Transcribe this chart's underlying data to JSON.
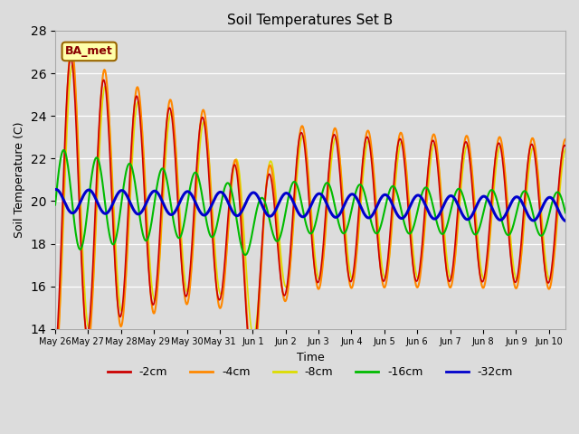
{
  "title": "Soil Temperatures Set B",
  "xlabel": "Time",
  "ylabel": "Soil Temperature (C)",
  "ylim": [
    14,
    28
  ],
  "yticks": [
    14,
    16,
    18,
    20,
    22,
    24,
    26,
    28
  ],
  "background_color": "#dcdcdc",
  "plot_bg_color": "#dcdcdc",
  "label_box_text": "BA_met",
  "label_box_bg": "#ffffaa",
  "label_box_edge": "#996600",
  "label_box_text_color": "#880000",
  "series_colors": {
    "-2cm": "#cc0000",
    "-4cm": "#ff8800",
    "-8cm": "#dddd00",
    "-16cm": "#00bb00",
    "-32cm": "#0000cc"
  },
  "date_labels": [
    "May 26",
    "May 27",
    "May 28",
    "May 29",
    "May 30",
    "May 31",
    "Jun 1",
    "Jun 2",
    "Jun 3",
    "Jun 4",
    "Jun 5",
    "Jun 6",
    "Jun 7",
    "Jun 8",
    "Jun 9",
    "Jun 10"
  ]
}
